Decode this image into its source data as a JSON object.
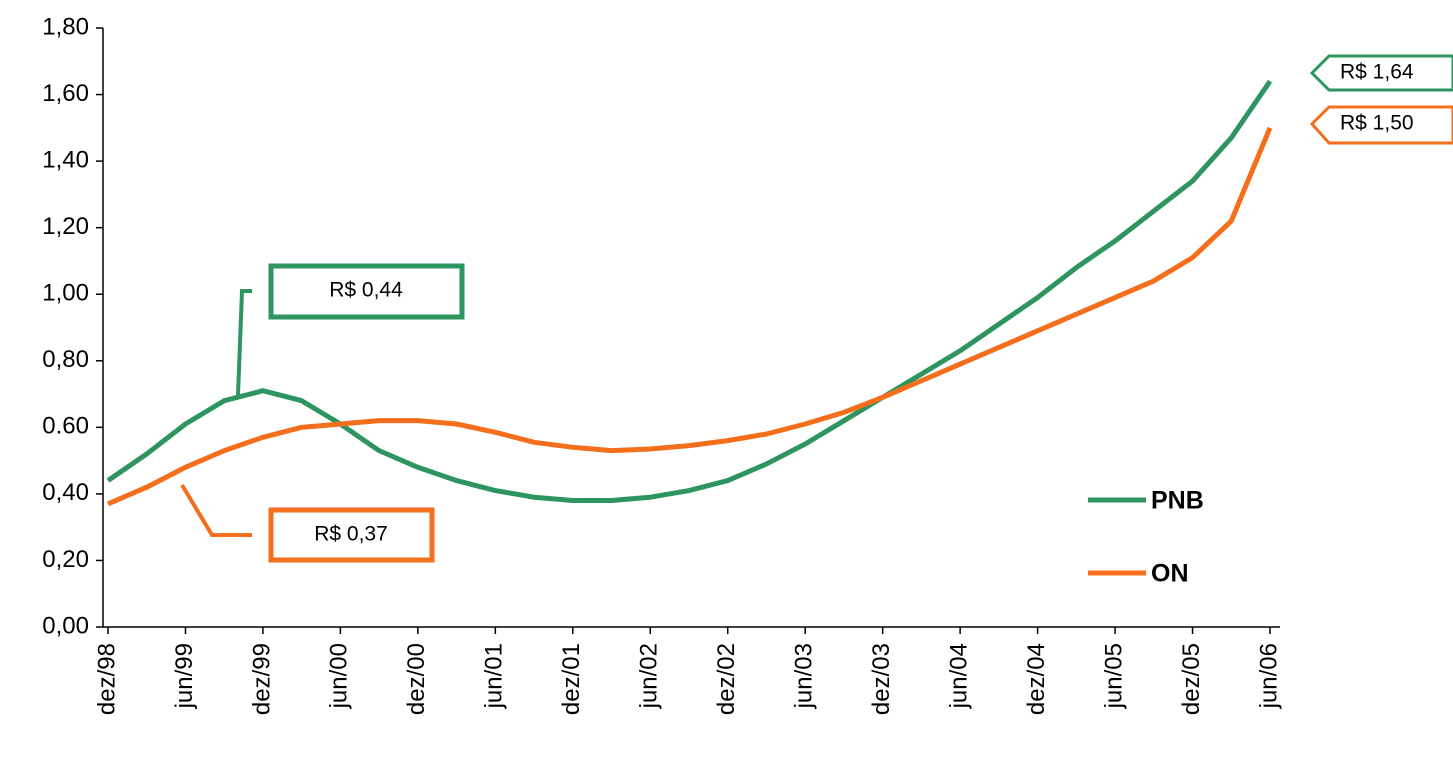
{
  "chart_data": {
    "type": "line",
    "categories": [
      "dez/98",
      null,
      "jun/99",
      null,
      "dez/99",
      null,
      "jun/00",
      null,
      "dez/00",
      null,
      "jun/01",
      null,
      "dez/01",
      null,
      "jun/02",
      null,
      "dez/02",
      null,
      "jun/03",
      null,
      "dez/03",
      null,
      "jun/04",
      null,
      "dez/04",
      null,
      "jun/05",
      null,
      "dez/05",
      null,
      "jun/06"
    ],
    "series": [
      {
        "name": "PNB",
        "color": "#2e9460",
        "values": [
          0.44,
          0.52,
          0.61,
          0.68,
          0.71,
          0.68,
          0.61,
          0.53,
          0.48,
          0.44,
          0.41,
          0.39,
          0.38,
          0.38,
          0.39,
          0.41,
          0.44,
          0.49,
          0.55,
          0.62,
          0.69,
          0.76,
          0.83,
          0.91,
          0.99,
          1.08,
          1.16,
          1.25,
          1.34,
          1.47,
          1.64
        ]
      },
      {
        "name": "ON",
        "color": "#f46e1c",
        "values": [
          0.37,
          0.42,
          0.48,
          0.53,
          0.57,
          0.6,
          0.61,
          0.62,
          0.62,
          0.61,
          0.585,
          0.555,
          0.54,
          0.53,
          0.535,
          0.545,
          0.56,
          0.58,
          0.61,
          0.645,
          0.69,
          0.74,
          0.79,
          0.84,
          0.89,
          0.94,
          0.99,
          1.04,
          1.11,
          1.22,
          1.5
        ]
      }
    ],
    "ylim": [
      0,
      1.8
    ],
    "yticks": [
      {
        "value": 0,
        "label": "0,00"
      },
      {
        "value": 0.2,
        "label": "0,20"
      },
      {
        "value": 0.4,
        "label": "0,40"
      },
      {
        "value": 0.6,
        "label": "0.60"
      },
      {
        "value": 0.8,
        "label": "0,80"
      },
      {
        "value": 1,
        "label": "1,00"
      },
      {
        "value": 1.2,
        "label": "1,20"
      },
      {
        "value": 1.4,
        "label": "1,40"
      },
      {
        "value": 1.6,
        "label": "1,60"
      },
      {
        "value": 1.8,
        "label": "1,80"
      }
    ],
    "annotations": [
      "R$ 0,44",
      "R$ 0,37",
      "R$ 1,64",
      "R$ 1,50"
    ],
    "legend": "lower right"
  }
}
